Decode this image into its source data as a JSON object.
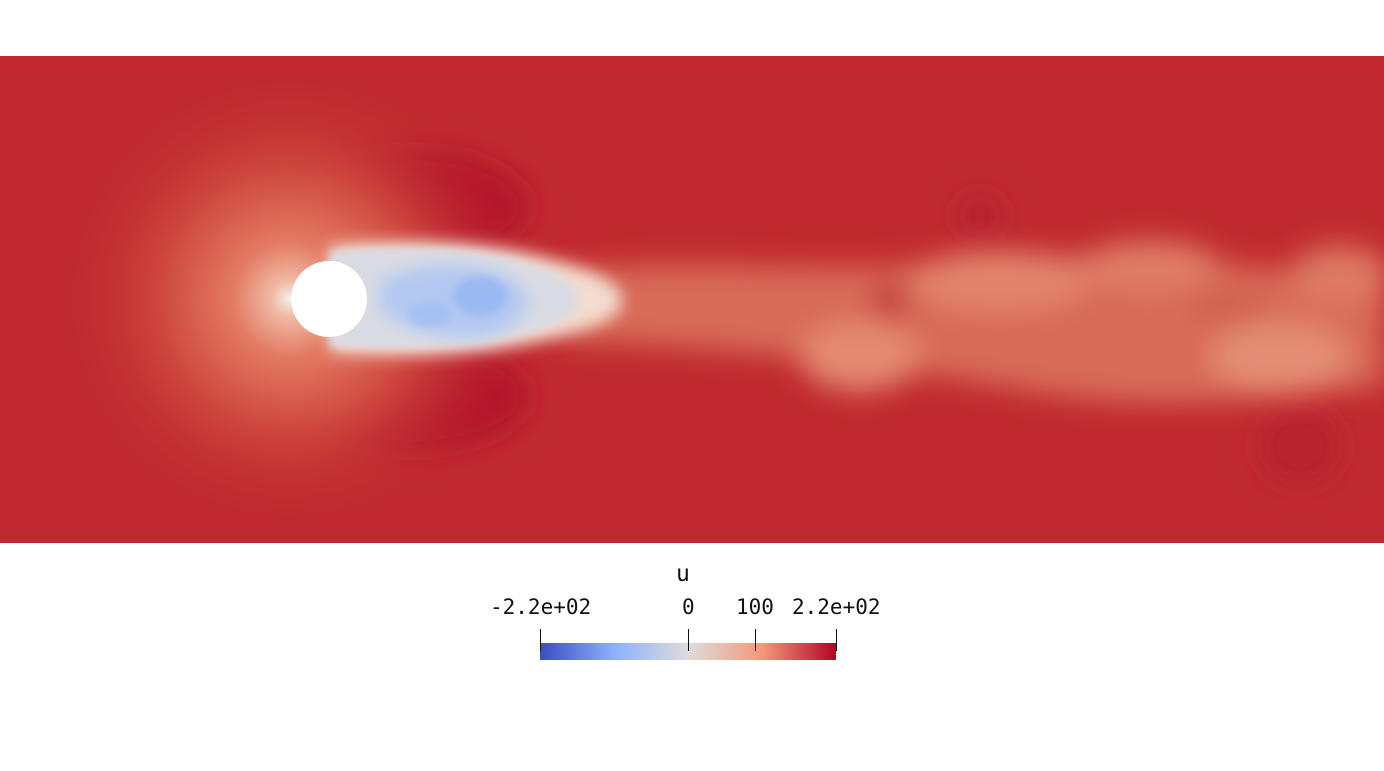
{
  "scene": {
    "field_name": "u",
    "obstacle": "cylinder",
    "colormap": "coolwarm",
    "colors": {
      "background": "#ffffff",
      "freestream": "#c02a2f",
      "deep_red": "#b01a2a",
      "neutral": "#dcdde2",
      "cool": "#a9c4f4",
      "cool_dark": "#8fb0f2",
      "min_color": "#3b4cc0",
      "max_color": "#b40426"
    }
  },
  "colorbar": {
    "title": "u",
    "range": [
      -220,
      220
    ],
    "ticks": [
      {
        "value": -220,
        "label": "-2.2e+02"
      },
      {
        "value": 0,
        "label": "0"
      },
      {
        "value": 100,
        "label": "100"
      },
      {
        "value": 220,
        "label": "2.2e+02"
      }
    ]
  }
}
